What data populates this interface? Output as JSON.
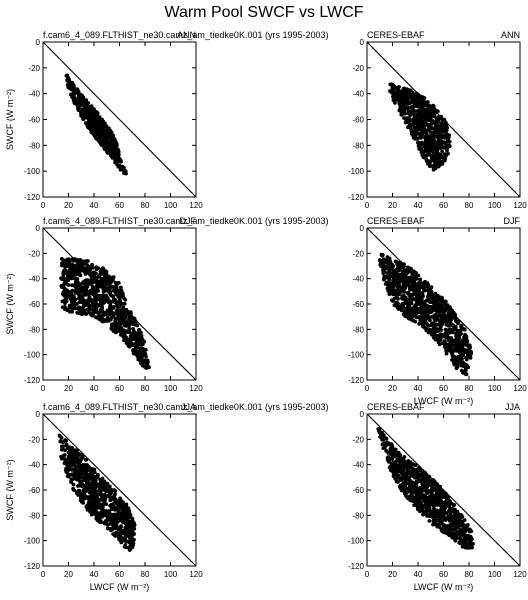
{
  "figure": {
    "title": "Warm Pool SWCF vs LWCF"
  },
  "chart_data": [
    {
      "id": "p1",
      "type": "scatter",
      "left_title": "f.cam6_4_089.FLTHIST_ne30.camz_am_tiedke0K.001 (yrs 1995-2003)",
      "right_title": "ANN",
      "xlabel": "",
      "ylabel": "SWCF (W m⁻²)",
      "xlim": [
        0,
        120
      ],
      "ylim": [
        -120,
        0
      ],
      "xticks": [
        "0",
        "20",
        "40",
        "60",
        "80",
        "100",
        "120"
      ],
      "yticks": [
        "0",
        "-20",
        "-40",
        "-60",
        "-80",
        "-100",
        "-120"
      ],
      "reference_line": {
        "x": [
          0,
          120
        ],
        "y": [
          0,
          -120
        ]
      },
      "cloud": [
        [
          18,
          -24
        ],
        [
          22,
          -30
        ],
        [
          28,
          -38
        ],
        [
          35,
          -46
        ],
        [
          42,
          -54
        ],
        [
          48,
          -62
        ],
        [
          54,
          -70
        ],
        [
          58,
          -78
        ],
        [
          60,
          -86
        ],
        [
          62,
          -94
        ],
        [
          65,
          -100
        ],
        [
          66,
          -104
        ],
        [
          60,
          -98
        ],
        [
          54,
          -90
        ],
        [
          46,
          -80
        ],
        [
          38,
          -70
        ],
        [
          30,
          -58
        ],
        [
          24,
          -46
        ],
        [
          20,
          -36
        ],
        [
          18,
          -28
        ]
      ],
      "series": [
        {
          "n": 520,
          "seed": 11
        }
      ]
    },
    {
      "id": "p2",
      "type": "scatter",
      "left_title": "CERES-EBAF",
      "right_title": "ANN",
      "xlabel": "",
      "ylabel": "",
      "xlim": [
        0,
        120
      ],
      "ylim": [
        -120,
        0
      ],
      "xticks": [
        "0",
        "20",
        "40",
        "60",
        "80",
        "100",
        "120"
      ],
      "yticks": [
        "0",
        "-20",
        "-40",
        "-60",
        "-80",
        "-100",
        "-120"
      ],
      "reference_line": {
        "x": [
          0,
          120
        ],
        "y": [
          0,
          -120
        ]
      },
      "cloud": [
        [
          18,
          -32
        ],
        [
          26,
          -34
        ],
        [
          36,
          -38
        ],
        [
          46,
          -44
        ],
        [
          54,
          -50
        ],
        [
          60,
          -58
        ],
        [
          64,
          -68
        ],
        [
          66,
          -78
        ],
        [
          64,
          -88
        ],
        [
          58,
          -96
        ],
        [
          52,
          -100
        ],
        [
          46,
          -92
        ],
        [
          40,
          -82
        ],
        [
          34,
          -70
        ],
        [
          28,
          -58
        ],
        [
          22,
          -48
        ],
        [
          18,
          -40
        ]
      ],
      "series": [
        {
          "n": 700,
          "seed": 23
        }
      ]
    },
    {
      "id": "p3",
      "type": "scatter",
      "left_title": "f.cam6_4_089.FLTHIST_ne30.camz_am_tiedke0K.001 (yrs 1995-2003)",
      "right_title": "DJF",
      "xlabel": "",
      "ylabel": "SWCF (W m⁻²)",
      "xlim": [
        0,
        120
      ],
      "ylim": [
        -120,
        0
      ],
      "xticks": [
        "0",
        "20",
        "40",
        "60",
        "80",
        "100",
        "120"
      ],
      "yticks": [
        "0",
        "-20",
        "-40",
        "-60",
        "-80",
        "-100",
        "-120"
      ],
      "reference_line": {
        "x": [
          0,
          120
        ],
        "y": [
          0,
          -120
        ]
      },
      "cloud": [
        [
          14,
          -24
        ],
        [
          24,
          -24
        ],
        [
          36,
          -26
        ],
        [
          46,
          -30
        ],
        [
          54,
          -36
        ],
        [
          60,
          -44
        ],
        [
          64,
          -54
        ],
        [
          68,
          -64
        ],
        [
          74,
          -76
        ],
        [
          80,
          -90
        ],
        [
          84,
          -110
        ],
        [
          80,
          -112
        ],
        [
          72,
          -100
        ],
        [
          62,
          -88
        ],
        [
          50,
          -76
        ],
        [
          40,
          -70
        ],
        [
          30,
          -68
        ],
        [
          20,
          -66
        ],
        [
          14,
          -62
        ],
        [
          14,
          -44
        ]
      ],
      "series": [
        {
          "n": 900,
          "seed": 37
        }
      ]
    },
    {
      "id": "p4",
      "type": "scatter",
      "left_title": "CERES-EBAF",
      "right_title": "DJF",
      "xlabel": "LWCF (W m⁻²)",
      "ylabel": "",
      "xlim": [
        0,
        120
      ],
      "ylim": [
        -120,
        0
      ],
      "xticks": [
        "0",
        "20",
        "40",
        "60",
        "80",
        "100",
        "120"
      ],
      "yticks": [
        "0",
        "-20",
        "-40",
        "-60",
        "-80",
        "-100",
        "-120"
      ],
      "reference_line": {
        "x": [
          0,
          120
        ],
        "y": [
          0,
          -120
        ]
      },
      "cloud": [
        [
          10,
          -20
        ],
        [
          20,
          -24
        ],
        [
          32,
          -30
        ],
        [
          44,
          -40
        ],
        [
          56,
          -52
        ],
        [
          66,
          -62
        ],
        [
          74,
          -74
        ],
        [
          80,
          -86
        ],
        [
          82,
          -100
        ],
        [
          78,
          -116
        ],
        [
          70,
          -112
        ],
        [
          60,
          -96
        ],
        [
          50,
          -84
        ],
        [
          40,
          -76
        ],
        [
          30,
          -70
        ],
        [
          20,
          -60
        ],
        [
          14,
          -44
        ],
        [
          10,
          -30
        ]
      ],
      "series": [
        {
          "n": 900,
          "seed": 41
        }
      ]
    },
    {
      "id": "p5",
      "type": "scatter",
      "left_title": "f.cam6_4_089.FLTHIST_ne30.camz_am_tiedke0K.001 (yrs 1995-2003)",
      "right_title": "JJA",
      "xlabel": "LWCF (W m⁻²)",
      "ylabel": "SWCF (W m⁻²)",
      "xlim": [
        0,
        120
      ],
      "ylim": [
        -120,
        0
      ],
      "xticks": [
        "0",
        "20",
        "40",
        "60",
        "80",
        "100",
        "120"
      ],
      "yticks": [
        "0",
        "-20",
        "-40",
        "-60",
        "-80",
        "-100",
        "-120"
      ],
      "reference_line": {
        "x": [
          0,
          120
        ],
        "y": [
          0,
          -120
        ]
      },
      "cloud": [
        [
          12,
          -16
        ],
        [
          22,
          -24
        ],
        [
          34,
          -36
        ],
        [
          46,
          -50
        ],
        [
          58,
          -62
        ],
        [
          66,
          -72
        ],
        [
          72,
          -86
        ],
        [
          72,
          -102
        ],
        [
          68,
          -110
        ],
        [
          60,
          -100
        ],
        [
          50,
          -90
        ],
        [
          40,
          -82
        ],
        [
          32,
          -72
        ],
        [
          24,
          -60
        ],
        [
          18,
          -46
        ],
        [
          13,
          -30
        ]
      ],
      "series": [
        {
          "n": 760,
          "seed": 53
        }
      ]
    },
    {
      "id": "p6",
      "type": "scatter",
      "left_title": "CERES-EBAF",
      "right_title": "JJA",
      "xlabel": "LWCF (W m⁻²)",
      "ylabel": "",
      "xlim": [
        0,
        120
      ],
      "ylim": [
        -120,
        0
      ],
      "xticks": [
        "0",
        "20",
        "40",
        "60",
        "80",
        "100",
        "120"
      ],
      "yticks": [
        "0",
        "-20",
        "-40",
        "-60",
        "-80",
        "-100",
        "-120"
      ],
      "reference_line": {
        "x": [
          0,
          120
        ],
        "y": [
          0,
          -120
        ]
      },
      "cloud": [
        [
          8,
          -10
        ],
        [
          18,
          -22
        ],
        [
          30,
          -34
        ],
        [
          44,
          -44
        ],
        [
          58,
          -58
        ],
        [
          72,
          -76
        ],
        [
          82,
          -92
        ],
        [
          84,
          -106
        ],
        [
          76,
          -106
        ],
        [
          64,
          -96
        ],
        [
          52,
          -88
        ],
        [
          40,
          -76
        ],
        [
          28,
          -62
        ],
        [
          18,
          -44
        ],
        [
          12,
          -26
        ]
      ],
      "series": [
        {
          "n": 820,
          "seed": 67
        }
      ]
    }
  ]
}
